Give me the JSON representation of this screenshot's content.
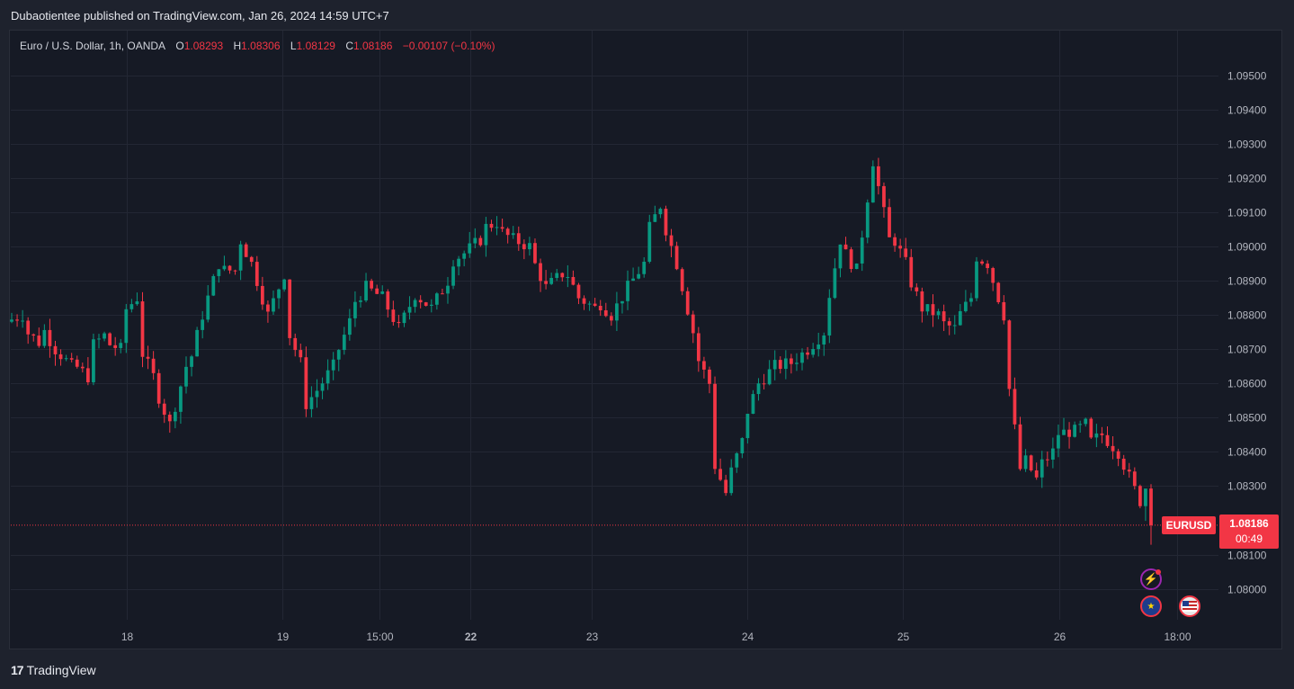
{
  "header": {
    "publisher_line": "Dubaotientee published on TradingView.com, Jan 26, 2024 14:59 UTC+7"
  },
  "legend": {
    "symbol": "Euro / U.S. Dollar, 1h, OANDA",
    "open_label": "O",
    "open": "1.08293",
    "high_label": "H",
    "high": "1.08306",
    "low_label": "L",
    "low": "1.08129",
    "close_label": "C",
    "close": "1.08186",
    "change": "−0.00107 (−0.10%)"
  },
  "price_tag": {
    "symbol": "EURUSD",
    "price": "1.08186",
    "countdown": "00:49"
  },
  "footer": {
    "brand": "TradingView",
    "logo_mark": "17"
  },
  "icons": [
    "lightning-icon",
    "eu-flag-icon",
    "us-flag-icon"
  ],
  "chart_data": {
    "type": "candlestick",
    "symbol": "EURUSD",
    "timeframe": "1h",
    "x_ticks": [
      {
        "label": "18",
        "bold": false
      },
      {
        "label": "19",
        "bold": false
      },
      {
        "label": "15:00",
        "bold": false
      },
      {
        "label": "22",
        "bold": true
      },
      {
        "label": "23",
        "bold": false
      },
      {
        "label": "24",
        "bold": false
      },
      {
        "label": "25",
        "bold": false
      },
      {
        "label": "26",
        "bold": false
      },
      {
        "label": "18:00",
        "bold": false
      }
    ],
    "y_ticks": [
      "1.09500",
      "1.09400",
      "1.09300",
      "1.09200",
      "1.09100",
      "1.09000",
      "1.08900",
      "1.08800",
      "1.08700",
      "1.08600",
      "1.08500",
      "1.08400",
      "1.08300",
      "1.08100",
      "1.08000"
    ],
    "ylim": [
      1.0791,
      1.0963
    ],
    "last_price": 1.08186,
    "grid": true,
    "colors": {
      "up": "#089981",
      "down": "#f23645",
      "background": "#161a25",
      "grid": "#232734",
      "text": "#b2b5be"
    },
    "anchors": [
      [
        1.0878,
        1.088
      ],
      [
        1.0876,
        1.0872
      ],
      [
        1.0878,
        1.087
      ],
      [
        1.087,
        1.0865
      ],
      [
        1.0866,
        1.0862
      ],
      [
        1.087,
        1.0874
      ],
      [
        1.0872,
        1.087
      ],
      [
        1.088,
        1.0885
      ],
      [
        1.0872,
        1.0862
      ],
      [
        1.086,
        1.0848
      ],
      [
        1.0848,
        1.0865
      ],
      [
        1.0862,
        1.088
      ],
      [
        1.088,
        1.0895
      ],
      [
        1.0893,
        1.0893
      ],
      [
        1.0905,
        1.0895
      ],
      [
        1.0895,
        1.088
      ],
      [
        1.088,
        1.0892
      ],
      [
        1.0878,
        1.0866
      ],
      [
        1.0852,
        1.0858
      ],
      [
        1.0858,
        1.0865
      ],
      [
        1.0866,
        1.0878
      ],
      [
        1.0882,
        1.0888
      ],
      [
        1.0888,
        1.0885
      ],
      [
        1.0885,
        1.0876
      ],
      [
        1.0876,
        1.0886
      ],
      [
        1.0886,
        1.0882
      ],
      [
        1.0882,
        1.089
      ],
      [
        1.0895,
        1.0898
      ],
      [
        1.0898,
        1.0902
      ],
      [
        1.0905,
        1.0907
      ],
      [
        1.0905,
        1.0902
      ],
      [
        1.0902,
        1.09
      ],
      [
        1.0898,
        1.0888
      ],
      [
        1.0888,
        1.0892
      ],
      [
        1.0895,
        1.0885
      ],
      [
        1.0885,
        1.0882
      ],
      [
        1.0885,
        1.088
      ],
      [
        1.088,
        1.0888
      ],
      [
        1.0888,
        1.0895
      ],
      [
        1.0902,
        1.0912
      ],
      [
        1.091,
        1.0895
      ],
      [
        1.0895,
        1.0875
      ],
      [
        1.087,
        1.086
      ],
      [
        1.084,
        1.0828
      ],
      [
        1.083,
        1.0843
      ],
      [
        1.0848,
        1.086
      ],
      [
        1.086,
        1.0865
      ],
      [
        1.0865,
        1.0866
      ],
      [
        1.0866,
        1.087
      ],
      [
        1.087,
        1.0875
      ],
      [
        1.0878,
        1.0902
      ],
      [
        1.09,
        1.0893
      ],
      [
        1.0893,
        1.0925
      ],
      [
        1.0925,
        1.0902
      ],
      [
        1.0905,
        1.0895
      ],
      [
        1.0893,
        1.0882
      ],
      [
        1.0882,
        1.088
      ],
      [
        1.0878,
        1.0876
      ],
      [
        1.0878,
        1.0885
      ],
      [
        1.0898,
        1.0895
      ],
      [
        1.0895,
        1.088
      ],
      [
        1.087,
        1.0835
      ],
      [
        1.084,
        1.0832
      ],
      [
        1.0835,
        1.084
      ],
      [
        1.0845,
        1.0846
      ],
      [
        1.0845,
        1.0848
      ],
      [
        1.0842,
        1.0845
      ],
      [
        1.0845,
        1.084
      ],
      [
        1.084,
        1.0829
      ],
      [
        1.0829,
        1.0819
      ]
    ]
  }
}
